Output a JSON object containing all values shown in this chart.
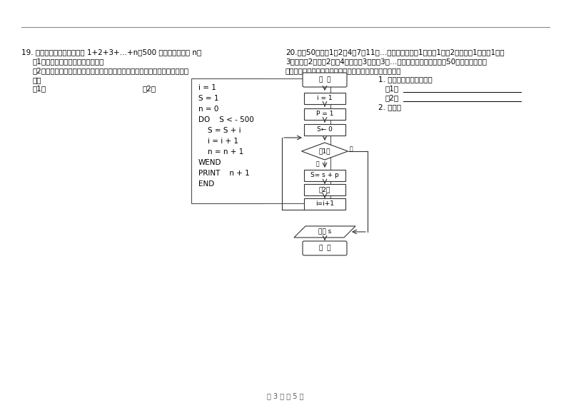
{
  "title": "第 3 页 共 5 页",
  "q19_text": "19. 根据下面的要求，求满足 1+2+3+…+n＞500 的最小的自然数 n。",
  "q19_sub1": "（1）画出执行该问题的程序框图；",
  "q19_sub2": "（2）以下是解决该问题的一个程序，但有几处错误，请找出错误并予以更正。",
  "q19_jie": "解：",
  "q19_1": "（1）",
  "q19_2": "（2）",
  "program_lines": [
    "i = 1",
    "S = 1",
    "n = 0",
    "DO    S < - 500",
    "    S = S + i",
    "    i = i + 1",
    "    n = n + 1",
    "WEND",
    "PRINT    n + 1",
    "END"
  ],
  "lines_q20": [
    "20.给出50个数，1，2，4，7，11，…，其规律是：第1个数是1，第2个数比第1个数大1，第",
    "3个数比第2个数大2，第4个数比第3个数大3，…，以此类推，要求计算这50个数的和，先将",
    "下面给出的程序框图补充完整，再根据程序框图写出程序。"
  ],
  "q20_sub1": "1. 把程序框图补充完整：",
  "q20_sub1_1": "（1）",
  "q20_sub1_2": "（2）",
  "q20_sub2": "2. 程序：",
  "flowchart_nodes": {
    "start": "开  始",
    "n1": "i = 1",
    "n2": "P = 1",
    "n3": "S← 0",
    "diamond": "（1）",
    "n4": "S= s + p",
    "n5": "（2）",
    "n6": "i=i+1",
    "output": "输出 s",
    "end": "结  束"
  },
  "bg_color": "#ffffff",
  "text_color": "#000000",
  "font_size_main": 7.5
}
